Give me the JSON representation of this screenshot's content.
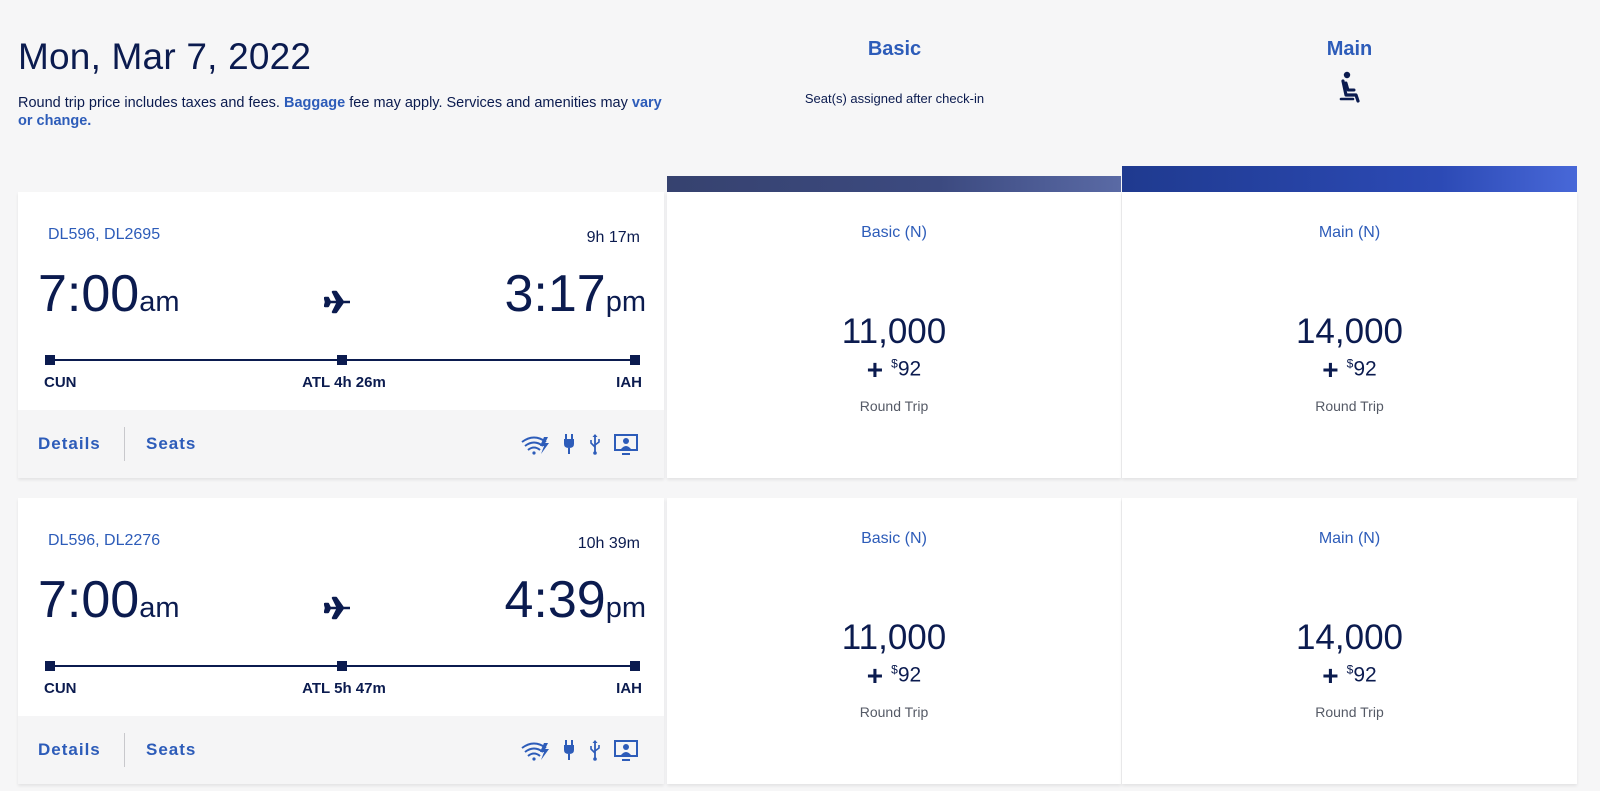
{
  "header": {
    "date": "Mon, Mar 7, 2022",
    "note_prefix": "Round trip price includes taxes and fees. ",
    "baggage_link": "Baggage",
    "note_middle": " fee may apply. Services and amenities may ",
    "vary_link": "vary or change."
  },
  "columns": {
    "basic": {
      "title": "Basic",
      "subtitle": "Seat(s) assigned after check-in"
    },
    "main": {
      "title": "Main",
      "icon": "seat-icon"
    }
  },
  "flights": [
    {
      "flight_numbers": "DL596, DL2695",
      "duration": "9h 17m",
      "depart_time": "7:00",
      "depart_ampm": "am",
      "arrive_time": "3:17",
      "arrive_ampm": "pm",
      "origin": "CUN",
      "layover": "ATL 4h 26m",
      "destination": "IAH",
      "details_label": "Details",
      "seats_label": "Seats",
      "amenities": [
        "wifi-icon",
        "power-outlet-icon",
        "usb-icon",
        "entertainment-screen-icon"
      ],
      "fares": {
        "basic": {
          "title": "Basic (N)",
          "miles": "11,000",
          "plus": "+",
          "currency": "$",
          "cash": "92",
          "trip": "Round Trip"
        },
        "main": {
          "title": "Main (N)",
          "miles": "14,000",
          "plus": "+",
          "currency": "$",
          "cash": "92",
          "trip": "Round Trip"
        }
      }
    },
    {
      "flight_numbers": "DL596, DL2276",
      "duration": "10h 39m",
      "depart_time": "7:00",
      "depart_ampm": "am",
      "arrive_time": "4:39",
      "arrive_ampm": "pm",
      "origin": "CUN",
      "layover": "ATL 5h 47m",
      "destination": "IAH",
      "details_label": "Details",
      "seats_label": "Seats",
      "amenities": [
        "wifi-icon",
        "power-outlet-icon",
        "usb-icon",
        "entertainment-screen-icon"
      ],
      "fares": {
        "basic": {
          "title": "Basic (N)",
          "miles": "11,000",
          "plus": "+",
          "currency": "$",
          "cash": "92",
          "trip": "Round Trip"
        },
        "main": {
          "title": "Main (N)",
          "miles": "14,000",
          "plus": "+",
          "currency": "$",
          "cash": "92",
          "trip": "Round Trip"
        }
      }
    }
  ],
  "colors": {
    "navy": "#0b1b4f",
    "link_blue": "#2d5cb9",
    "main_bar": "#2c4ab5",
    "basic_bar": "#3c4a80"
  }
}
